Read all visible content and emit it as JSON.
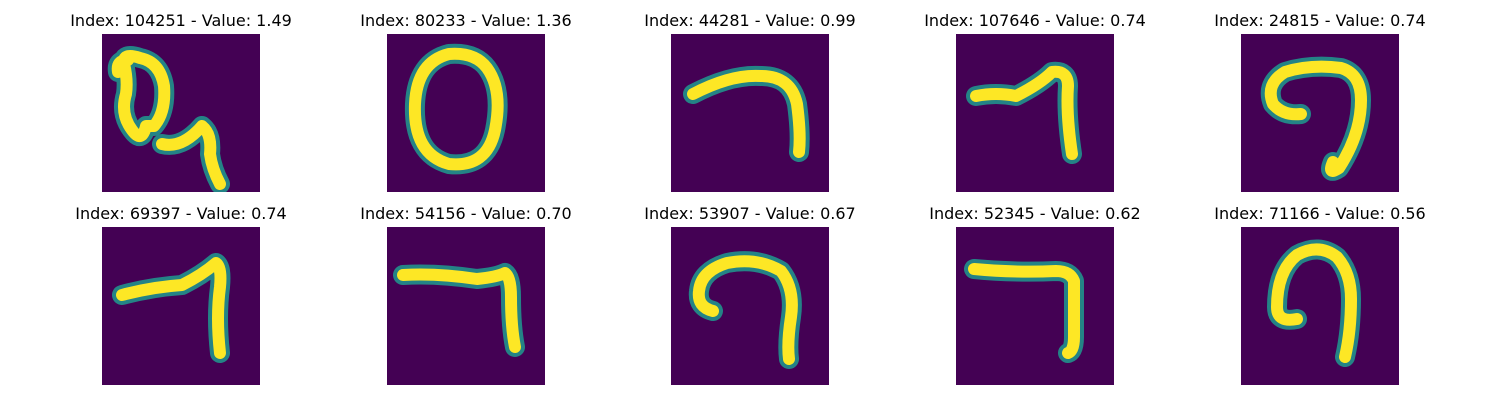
{
  "figure": {
    "colors": {
      "background": "#440154",
      "mid": "#21918c",
      "high": "#fde725"
    },
    "panels": [
      {
        "index": "104251",
        "value": "1.49",
        "glyph": "q-shape"
      },
      {
        "index": "80233",
        "value": "1.36",
        "glyph": "o-ring"
      },
      {
        "index": "44281",
        "value": "0.99",
        "glyph": "hook-a"
      },
      {
        "index": "107646",
        "value": "0.74",
        "glyph": "hook-b"
      },
      {
        "index": "24815",
        "value": "0.74",
        "glyph": "hook-c"
      },
      {
        "index": "69397",
        "value": "0.74",
        "glyph": "seven-a"
      },
      {
        "index": "54156",
        "value": "0.70",
        "glyph": "seven-b"
      },
      {
        "index": "53907",
        "value": "0.67",
        "glyph": "hook-d"
      },
      {
        "index": "52345",
        "value": "0.62",
        "glyph": "seven-c"
      },
      {
        "index": "71166",
        "value": "0.56",
        "glyph": "hook-e"
      }
    ]
  }
}
